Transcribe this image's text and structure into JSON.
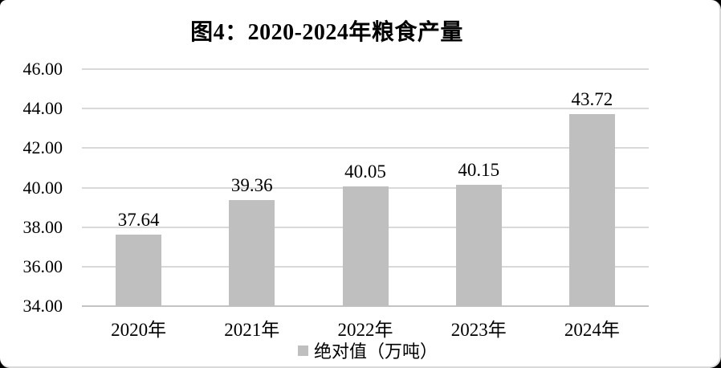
{
  "chart": {
    "title": "图4：2020-2024年粮食产量",
    "legend": {
      "label": "绝对值（万吨）"
    },
    "colors": {
      "bar": "#bfbfbf",
      "gridline": "#d9d9d9",
      "axis_line": "#c3c3c3",
      "text": "#000000",
      "frame_border": "#d9d9d9",
      "background": "#ffffff"
    }
  },
  "chart_data": {
    "type": "bar",
    "title": "图4：2020-2024年粮食产量",
    "categories": [
      "2020年",
      "2021年",
      "2022年",
      "2023年",
      "2024年"
    ],
    "values": [
      37.64,
      39.36,
      40.05,
      40.15,
      43.72
    ],
    "data_labels": [
      "37.64",
      "39.36",
      "40.05",
      "40.15",
      "43.72"
    ],
    "xlabel": "",
    "ylabel": "",
    "ylim": [
      34,
      46
    ],
    "ytick_step": 2,
    "ytick_labels": [
      "34.00",
      "36.00",
      "38.00",
      "40.00",
      "42.00",
      "44.00",
      "46.00"
    ],
    "grid": true,
    "legend": [
      "绝对值（万吨）"
    ],
    "legend_position": "bottom-center",
    "bar_color": "#bfbfbf"
  }
}
